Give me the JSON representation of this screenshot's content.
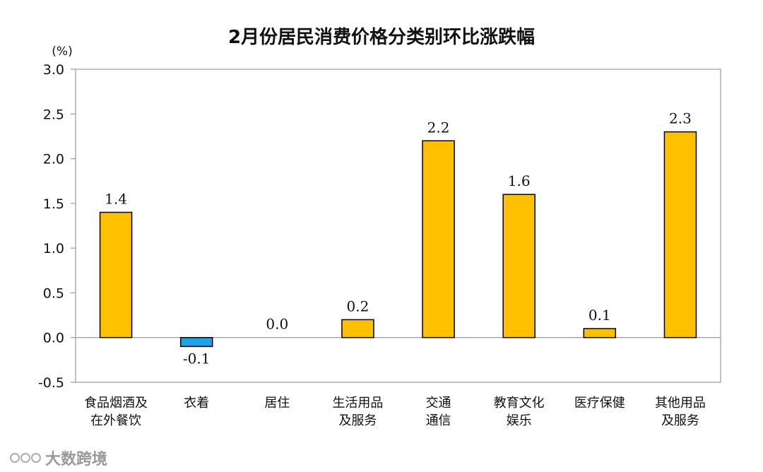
{
  "chart_data": {
    "type": "bar",
    "title": "2月份居民消费价格分类别环比涨跌幅",
    "ylabel": "(%)",
    "ylim": [
      -0.5,
      3.0
    ],
    "yticks": [
      "3.0",
      "2.5",
      "2.0",
      "1.5",
      "1.0",
      "0.5",
      "0.0",
      "-0.5"
    ],
    "grid": false,
    "categories": [
      {
        "lines": [
          "食品烟酒及",
          "在外餐饮"
        ]
      },
      {
        "lines": [
          "衣着"
        ]
      },
      {
        "lines": [
          "居住"
        ]
      },
      {
        "lines": [
          "生活用品",
          "及服务"
        ]
      },
      {
        "lines": [
          "交通",
          "通信"
        ]
      },
      {
        "lines": [
          "教育文化",
          "娱乐"
        ]
      },
      {
        "lines": [
          "医疗保健"
        ]
      },
      {
        "lines": [
          "其他用品",
          "及服务"
        ]
      }
    ],
    "values": [
      1.4,
      -0.1,
      0.0,
      0.2,
      2.2,
      1.6,
      0.1,
      2.3
    ],
    "value_labels": [
      "1.4",
      "-0.1",
      "0.0",
      "0.2",
      "2.2",
      "1.6",
      "0.1",
      "2.3"
    ],
    "colors": {
      "positive": "#FFC000",
      "negative": "#1AA3E8",
      "bar_edge": "#000000",
      "axis": "#999999"
    }
  },
  "watermark": {
    "text": "大数跨境",
    "icon": "circles-logo-icon"
  }
}
